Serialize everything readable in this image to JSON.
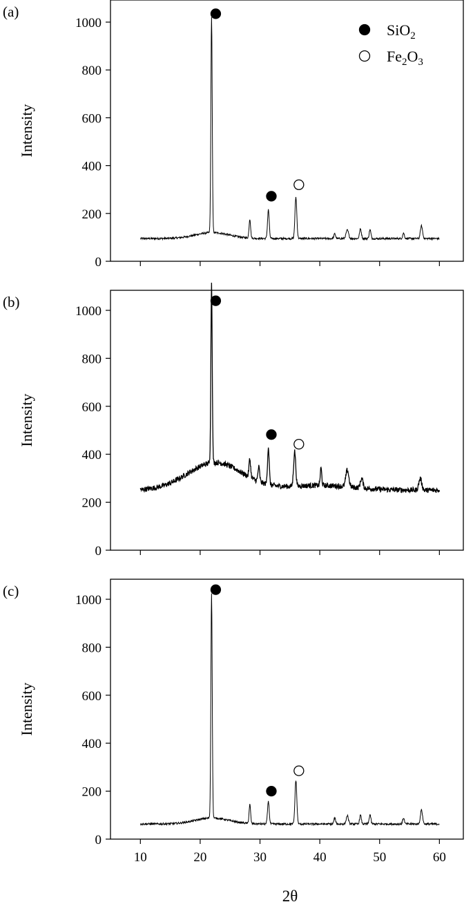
{
  "chart_data": {
    "type": "line",
    "xlabel": "2θ",
    "xlim": [
      5,
      64
    ],
    "x_ticks": [
      10,
      20,
      30,
      40,
      50,
      60
    ],
    "legend": {
      "placement": "top-right",
      "entries": [
        {
          "base": "SiO",
          "subscript": "2",
          "tail": "",
          "marker": "filled-circle"
        },
        {
          "base": "Fe",
          "subscript": "2",
          "mid": "O",
          "subscript2": "3",
          "marker": "open-circle"
        }
      ]
    },
    "panels": [
      {
        "label": "(a)",
        "ylabel": "Intensity",
        "ylim": [
          0,
          1080
        ],
        "y_ticks": [
          0,
          200,
          400,
          600,
          800,
          1000
        ],
        "baseline": 95,
        "peaks": [
          {
            "x": 21.9,
            "height": 1000,
            "width": 0.16
          },
          {
            "x": 28.3,
            "height": 175,
            "width": 0.18
          },
          {
            "x": 31.4,
            "height": 215,
            "width": 0.2
          },
          {
            "x": 36.0,
            "height": 268,
            "width": 0.22
          },
          {
            "x": 42.5,
            "height": 115,
            "width": 0.2
          },
          {
            "x": 44.6,
            "height": 130,
            "width": 0.3
          },
          {
            "x": 46.8,
            "height": 135,
            "width": 0.22
          },
          {
            "x": 48.4,
            "height": 132,
            "width": 0.2
          },
          {
            "x": 54.0,
            "height": 118,
            "width": 0.2
          },
          {
            "x": 57.0,
            "height": 148,
            "width": 0.25
          }
        ],
        "markers": [
          {
            "x": 22.6,
            "y": 1035,
            "kind": "SiO2"
          },
          {
            "x": 31.9,
            "y": 272,
            "kind": "SiO2"
          },
          {
            "x": 36.5,
            "y": 320,
            "kind": "Fe2O3"
          }
        ]
      },
      {
        "label": "(b)",
        "ylabel": "Intensity",
        "ylim": [
          0,
          1080
        ],
        "y_ticks": [
          0,
          200,
          400,
          600,
          800,
          1000
        ],
        "baseline": 250,
        "peaks": [
          {
            "x": 21.9,
            "height": 1000,
            "width": 0.16
          },
          {
            "x": 28.3,
            "height": 325,
            "width": 0.2
          },
          {
            "x": 29.8,
            "height": 310,
            "width": 0.2
          },
          {
            "x": 31.4,
            "height": 405,
            "width": 0.2
          },
          {
            "x": 35.8,
            "height": 395,
            "width": 0.25
          },
          {
            "x": 40.2,
            "height": 322,
            "width": 0.18
          },
          {
            "x": 44.6,
            "height": 320,
            "width": 0.35
          },
          {
            "x": 47.0,
            "height": 290,
            "width": 0.3
          },
          {
            "x": 56.8,
            "height": 298,
            "width": 0.35
          }
        ],
        "markers": [
          {
            "x": 22.6,
            "y": 1040,
            "kind": "SiO2"
          },
          {
            "x": 31.9,
            "y": 482,
            "kind": "SiO2"
          },
          {
            "x": 36.5,
            "y": 442,
            "kind": "Fe2O3"
          }
        ]
      },
      {
        "label": "(c)",
        "ylabel": "Intensity",
        "ylim": [
          0,
          1080
        ],
        "y_ticks": [
          0,
          200,
          400,
          600,
          800,
          1000
        ],
        "baseline": 63,
        "peaks": [
          {
            "x": 21.9,
            "height": 1000,
            "width": 0.16
          },
          {
            "x": 28.3,
            "height": 142,
            "width": 0.18
          },
          {
            "x": 31.4,
            "height": 158,
            "width": 0.2
          },
          {
            "x": 36.0,
            "height": 245,
            "width": 0.22
          },
          {
            "x": 42.5,
            "height": 88,
            "width": 0.2
          },
          {
            "x": 44.6,
            "height": 98,
            "width": 0.25
          },
          {
            "x": 46.8,
            "height": 100,
            "width": 0.2
          },
          {
            "x": 48.4,
            "height": 102,
            "width": 0.2
          },
          {
            "x": 54.0,
            "height": 88,
            "width": 0.2
          },
          {
            "x": 57.0,
            "height": 122,
            "width": 0.25
          }
        ],
        "markers": [
          {
            "x": 22.6,
            "y": 1040,
            "kind": "SiO2"
          },
          {
            "x": 31.9,
            "y": 200,
            "kind": "SiO2"
          },
          {
            "x": 36.5,
            "y": 285,
            "kind": "Fe2O3"
          }
        ]
      }
    ]
  }
}
